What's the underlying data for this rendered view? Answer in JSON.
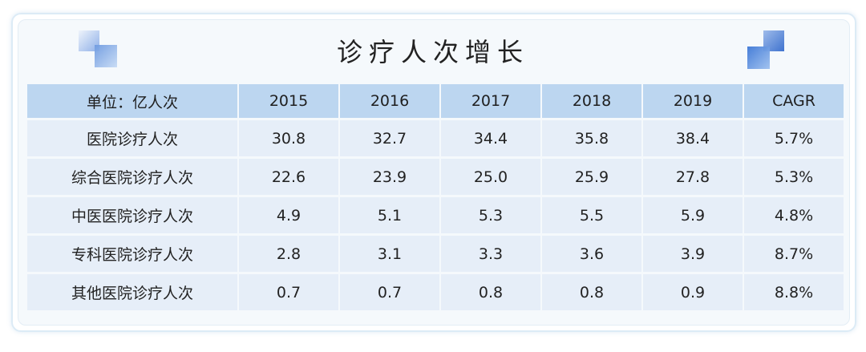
{
  "title": "诊疗人次增长",
  "table": {
    "headers": [
      "单位：亿人次",
      "2015",
      "2016",
      "2017",
      "2018",
      "2019",
      "CAGR"
    ],
    "rows": [
      {
        "label": "医院诊疗人次",
        "values": [
          "30.8",
          "32.7",
          "34.4",
          "35.8",
          "38.4",
          "5.7%"
        ]
      },
      {
        "label": "综合医院诊疗人次",
        "values": [
          "22.6",
          "23.9",
          "25.0",
          "25.9",
          "27.8",
          "5.3%"
        ]
      },
      {
        "label": "中医医院诊疗人次",
        "values": [
          "4.9",
          "5.1",
          "5.3",
          "5.5",
          "5.9",
          "4.8%"
        ]
      },
      {
        "label": "专科医院诊疗人次",
        "values": [
          "2.8",
          "3.1",
          "3.3",
          "3.6",
          "3.9",
          "8.7%"
        ]
      },
      {
        "label": "其他医院诊疗人次",
        "values": [
          "0.7",
          "0.7",
          "0.8",
          "0.8",
          "0.9",
          "8.8%"
        ]
      }
    ]
  },
  "colors": {
    "header_bg": "#bcd6f0",
    "row_bg": "#e6eef8",
    "accent": "#5b88d8"
  }
}
